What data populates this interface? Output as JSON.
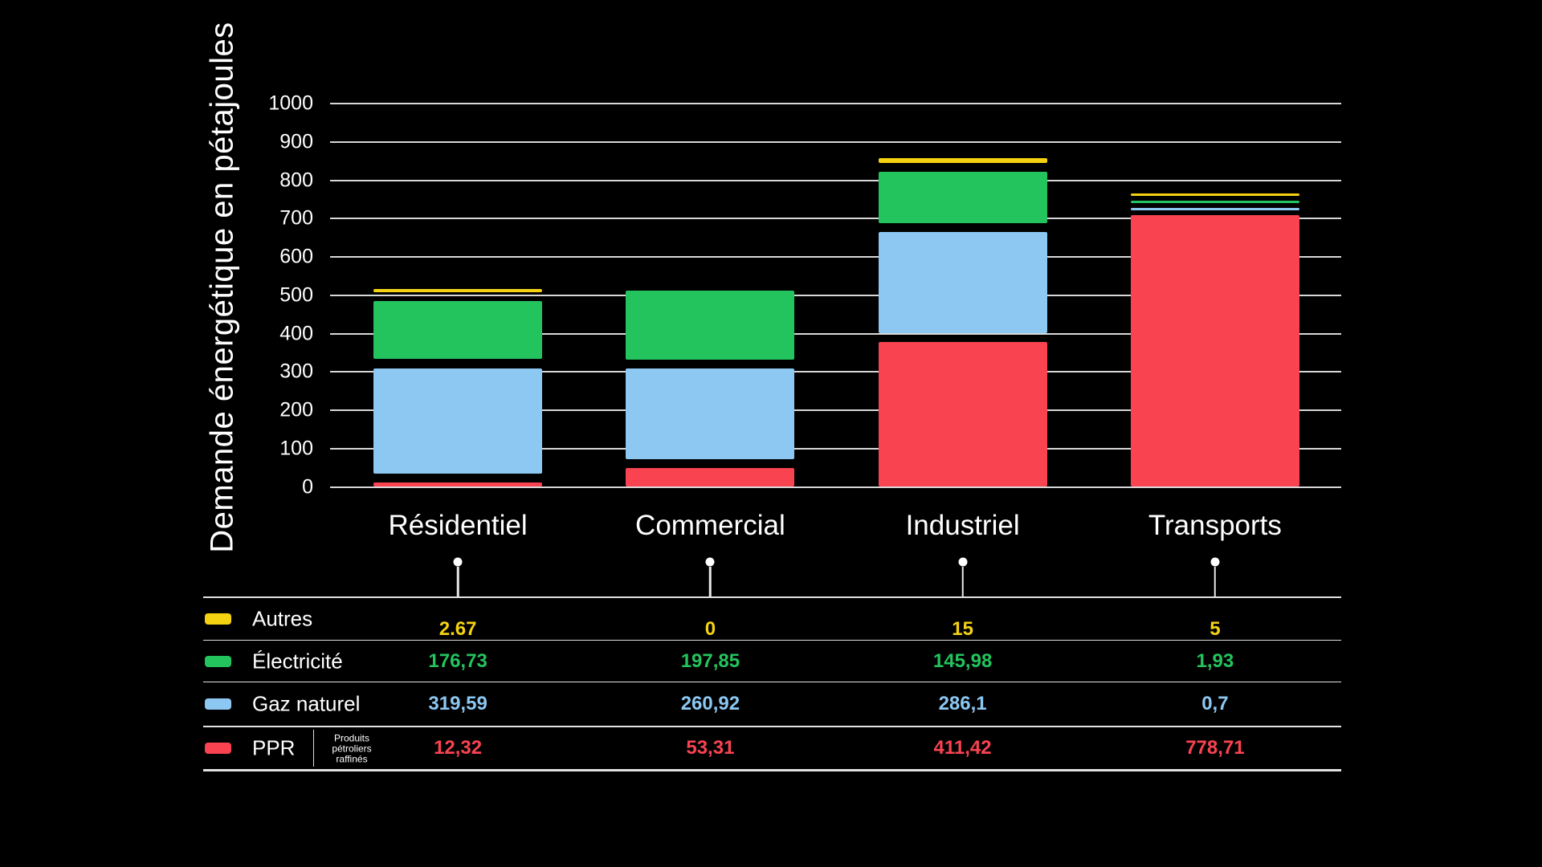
{
  "chart_data": {
    "type": "bar",
    "stacked": true,
    "ylabel": "Demande énergétique en pétajoules",
    "ylim": [
      0,
      1000
    ],
    "ytick_step": 100,
    "grid": true,
    "background": "#000000",
    "legend_position": "table-bottom",
    "categories": [
      "Résidentiel",
      "Commercial",
      "Industriel",
      "Transports"
    ],
    "series": [
      {
        "name": "PPR",
        "subtitle": [
          "Produits",
          "pétroliers",
          "raffinés"
        ],
        "color": "#F94351",
        "values": [
          12.32,
          53.31,
          411.42,
          778.71
        ],
        "values_display": [
          "12,32",
          "53,31",
          "411,42",
          "778,71"
        ]
      },
      {
        "name": "Gaz naturel",
        "color": "#8CC8F2",
        "values": [
          319.59,
          260.92,
          286.1,
          0.7
        ],
        "values_display": [
          "319,59",
          "260,92",
          "286,1",
          "0,7"
        ]
      },
      {
        "name": "Électricité",
        "color": "#23C45E",
        "values": [
          176.73,
          197.85,
          145.98,
          1.93
        ],
        "values_display": [
          "176,73",
          "197,85",
          "145,98",
          "1,93"
        ]
      },
      {
        "name": "Autres",
        "color": "#F5D211",
        "values": [
          2.67,
          0,
          15,
          5
        ],
        "values_display": [
          "2.67",
          "0",
          "15",
          "5"
        ]
      }
    ]
  }
}
